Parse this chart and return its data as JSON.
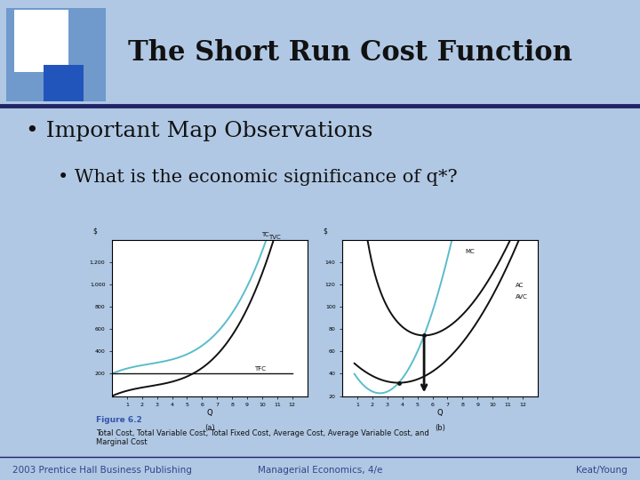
{
  "title": "The Short Run Cost Function",
  "bullet1": "Important Map Observations",
  "bullet2": "What is the economic significance of q*?",
  "figure_label": "Figure 6.2",
  "figure_caption": "Total Cost, Total Variable Cost, Total Fixed Cost, Average Cost, Average Variable Cost, and\nMarginal Cost",
  "footer_left": "2003 Prentice Hall Business Publishing",
  "footer_center": "Managerial Economics, 4/e",
  "footer_right": "Keat/Young",
  "slide_bg": "#b0c8e4",
  "header_bg": "#b0c8e4",
  "white": "#ffffff",
  "dark_blue": "#2255bb",
  "medium_blue": "#4477bb",
  "light_blue_logo": "#7099cc",
  "text_dark": "#111111",
  "teal_color": "#5bbccc",
  "black_curve": "#111111",
  "arrow_color": "#111111",
  "figure_label_color": "#3355aa",
  "footer_color": "#334488",
  "header_line_color": "#222266"
}
